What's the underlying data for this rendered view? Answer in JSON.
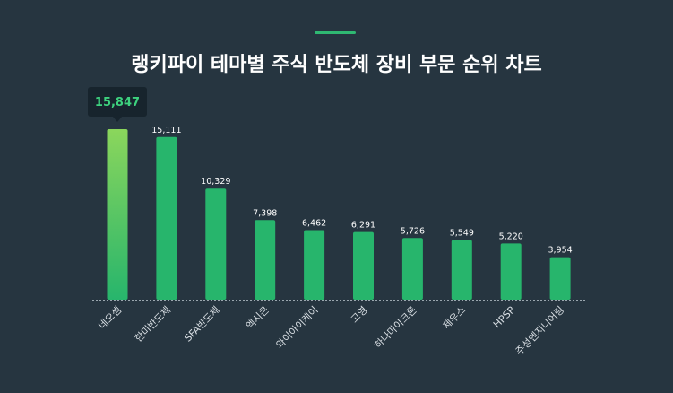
{
  "title": "랭키파이 테마별 주식 반도체 장비 부문 순위 차트",
  "colors": {
    "background": "#263540",
    "bar": "#27b56c",
    "bar_top_light": "#8bd65c",
    "accent": "#2fb872",
    "tooltip_bg": "#17242d"
  },
  "chart_data": {
    "type": "bar",
    "title": "랭키파이 테마별 주식 반도체 장비 부문 순위 차트",
    "xlabel": "",
    "ylabel": "",
    "ylim": [
      0,
      15847
    ],
    "grid": false,
    "categories": [
      "네오셈",
      "한미반도체",
      "SFA반도체",
      "엑시콘",
      "와이아이케이",
      "고영",
      "하나마이크론",
      "제우스",
      "HPSP",
      "주성엔지니어링"
    ],
    "values": [
      15847,
      15111,
      10329,
      7398,
      6462,
      6291,
      5726,
      5549,
      5220,
      3954
    ],
    "value_labels": [
      "15,847",
      "15,111",
      "10,329",
      "7,398",
      "6,462",
      "6,291",
      "5,726",
      "5,549",
      "5,220",
      "3,954"
    ],
    "highlighted_index": 0
  }
}
